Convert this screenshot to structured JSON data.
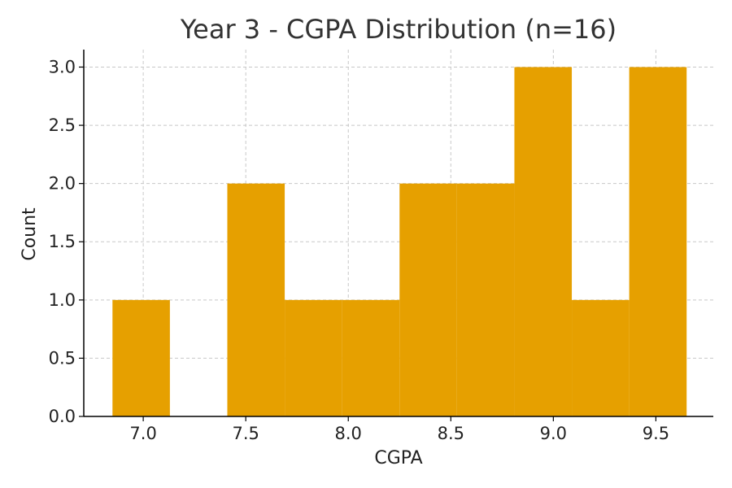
{
  "chart_data": {
    "type": "bar",
    "title": "Year 3 - CGPA Distribution (n=16)",
    "xlabel": "CGPA",
    "ylabel": "Count",
    "bar_color": "#e6a000",
    "grid": true,
    "xlim": [
      6.71,
      9.78
    ],
    "ylim": [
      0,
      3.15
    ],
    "xticks": [
      7.0,
      7.5,
      8.0,
      8.5,
      9.0,
      9.5
    ],
    "xtick_labels": [
      "7.0",
      "7.5",
      "8.0",
      "8.5",
      "9.0",
      "9.5"
    ],
    "yticks": [
      0,
      0.5,
      1.0,
      1.5,
      2.0,
      2.5,
      3.0
    ],
    "ytick_labels": [
      "0.0",
      "0.5",
      "1.0",
      "1.5",
      "2.0",
      "2.5",
      "3.0"
    ],
    "bins": [
      {
        "start": 6.85,
        "end": 7.13,
        "count": 1
      },
      {
        "start": 7.13,
        "end": 7.41,
        "count": 0
      },
      {
        "start": 7.41,
        "end": 7.69,
        "count": 2
      },
      {
        "start": 7.69,
        "end": 7.97,
        "count": 1
      },
      {
        "start": 7.97,
        "end": 8.25,
        "count": 1
      },
      {
        "start": 8.25,
        "end": 8.53,
        "count": 2
      },
      {
        "start": 8.53,
        "end": 8.81,
        "count": 2
      },
      {
        "start": 8.81,
        "end": 9.09,
        "count": 3
      },
      {
        "start": 9.09,
        "end": 9.37,
        "count": 1
      },
      {
        "start": 9.37,
        "end": 9.65,
        "count": 3
      }
    ]
  }
}
